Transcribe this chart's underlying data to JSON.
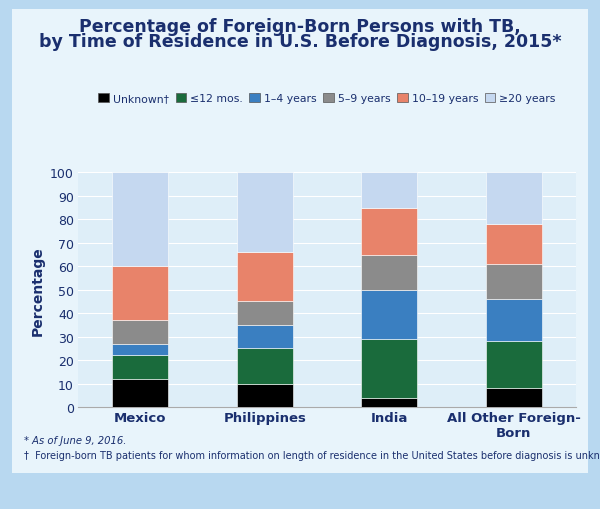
{
  "categories": [
    "Mexico",
    "Philippines",
    "India",
    "All Other Foreign-\nBorn"
  ],
  "series_keys": [
    "Unknown†",
    "≤12 mos.",
    "1–4 years",
    "5–9 years",
    "10–19 years",
    "≥20 years"
  ],
  "series_values": {
    "Unknown†": [
      12,
      10,
      4,
      8
    ],
    "≤12 mos.": [
      10,
      15,
      25,
      20
    ],
    "1–4 years": [
      5,
      10,
      21,
      18
    ],
    "5–9 years": [
      10,
      10,
      15,
      15
    ],
    "10–19 years": [
      23,
      21,
      20,
      17
    ],
    "≥20 years": [
      40,
      34,
      15,
      22
    ]
  },
  "colors": {
    "Unknown†": "#000000",
    "≤12 mos.": "#1a6b3c",
    "1–4 years": "#3a7fc1",
    "5–9 years": "#8b8b8b",
    "10–19 years": "#e8836a",
    "≥20 years": "#c5d8f0"
  },
  "title_line1": "Percentage of Foreign-Born Persons with TB,",
  "title_line2": "by Time of Residence in U.S. Before Diagnosis, 2015*",
  "ylabel": "Percentage",
  "ylim": [
    0,
    100
  ],
  "yticks": [
    0,
    10,
    20,
    30,
    40,
    50,
    60,
    70,
    80,
    90,
    100
  ],
  "footnote1": "* As of June 9, 2016.",
  "footnote2": "†  Foreign-born TB patients for whom information on length of residence in the United States before diagnosis is unknown or missing.",
  "outer_bg": "#b8d8f0",
  "card_bg": "#e8f4fb",
  "plot_bg": "#deeef8",
  "title_color": "#1a2f6e",
  "axis_color": "#1a2f6e",
  "legend_color": "#1a2f6e",
  "footnote_color": "#1a2f6e",
  "tick_color": "#1a2f6e",
  "bar_width": 0.45
}
